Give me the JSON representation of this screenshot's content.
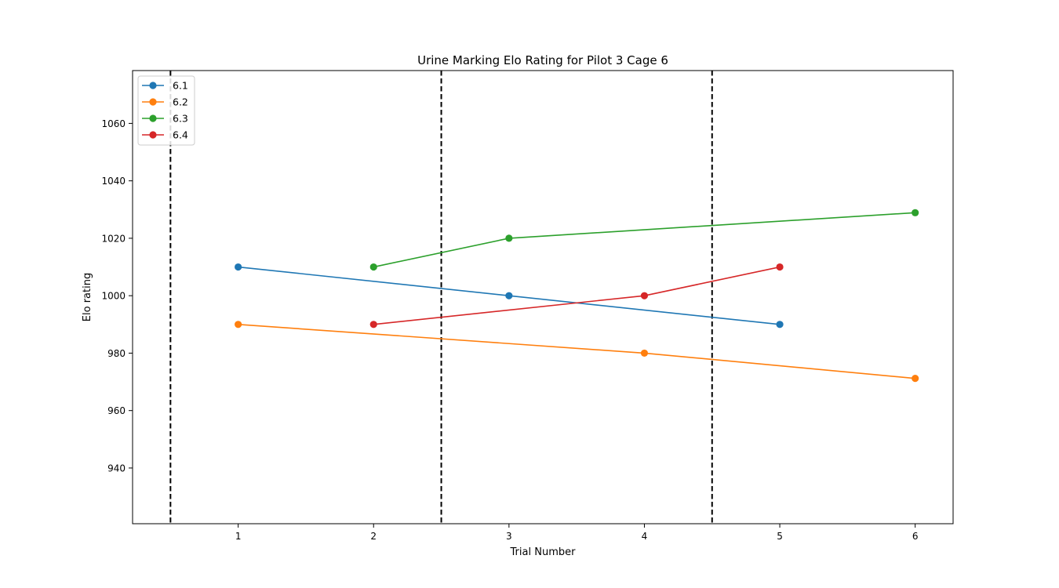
{
  "chart_data": {
    "type": "line",
    "title": "Urine Marking Elo Rating for Pilot 3 Cage 6",
    "xlabel": "Trial Number",
    "ylabel": "Elo rating",
    "xlim": [
      0.22,
      6.28
    ],
    "ylim": [
      920.6,
      1078.4
    ],
    "x_ticks": [
      1,
      2,
      3,
      4,
      5,
      6
    ],
    "y_ticks": [
      940,
      960,
      980,
      1000,
      1020,
      1040,
      1060
    ],
    "vlines": {
      "x": [
        0.5,
        2.5,
        4.5
      ],
      "style": "dashed",
      "color": "#000000"
    },
    "grid": false,
    "legend_position": "upper left",
    "series": [
      {
        "name": "6.1",
        "color": "#1f77b4",
        "x": [
          1,
          3,
          5
        ],
        "y": [
          1010,
          1000,
          990
        ]
      },
      {
        "name": "6.2",
        "color": "#ff7f0e",
        "x": [
          1,
          4,
          6
        ],
        "y": [
          990,
          980,
          971.2
        ]
      },
      {
        "name": "6.3",
        "color": "#2ca02c",
        "x": [
          2,
          3,
          6
        ],
        "y": [
          1010,
          1020,
          1028.9
        ]
      },
      {
        "name": "6.4",
        "color": "#d62728",
        "x": [
          2,
          4,
          5
        ],
        "y": [
          990,
          1000,
          1010
        ]
      }
    ]
  }
}
